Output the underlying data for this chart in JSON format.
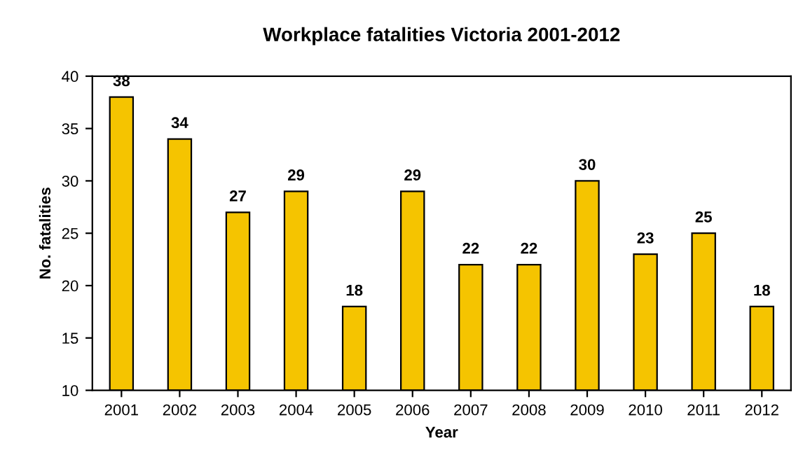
{
  "chart_data": {
    "type": "bar",
    "title": "Workplace fatalities Victoria 2001-2012",
    "xlabel": "Year",
    "ylabel": "No. fatalities",
    "categories": [
      "2001",
      "2002",
      "2003",
      "2004",
      "2005",
      "2006",
      "2007",
      "2008",
      "2009",
      "2010",
      "2011",
      "2012"
    ],
    "values": [
      38,
      34,
      27,
      29,
      18,
      29,
      22,
      22,
      30,
      23,
      25,
      18
    ],
    "color": "#f5c400",
    "ylim": [
      10,
      40
    ],
    "yticks": [
      10,
      15,
      20,
      25,
      30,
      35,
      40
    ],
    "grid": false,
    "data_labels": true
  }
}
